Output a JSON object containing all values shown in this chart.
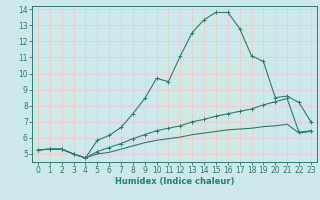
{
  "title": "",
  "xlabel": "Humidex (Indice chaleur)",
  "bg_color": "#cde8e8",
  "grid_color": "#f0c8c8",
  "line_color": "#2d7d6e",
  "xlim": [
    -0.5,
    23.5
  ],
  "ylim": [
    4.5,
    14.2
  ],
  "xticks": [
    0,
    1,
    2,
    3,
    4,
    5,
    6,
    7,
    8,
    9,
    10,
    11,
    12,
    13,
    14,
    15,
    16,
    17,
    18,
    19,
    20,
    21,
    22,
    23
  ],
  "yticks": [
    5,
    6,
    7,
    8,
    9,
    10,
    11,
    12,
    13,
    14
  ],
  "series1_x": [
    0,
    1,
    2,
    3,
    4,
    5,
    6,
    7,
    8,
    9,
    10,
    11,
    12,
    13,
    14,
    15,
    16,
    17,
    18,
    19,
    20,
    21,
    22,
    23
  ],
  "series1_y": [
    5.25,
    5.3,
    5.3,
    5.0,
    4.75,
    5.85,
    6.15,
    6.65,
    7.5,
    8.45,
    9.7,
    9.5,
    11.1,
    12.55,
    13.35,
    13.8,
    13.8,
    12.8,
    11.1,
    10.75,
    8.5,
    8.6,
    8.2,
    7.0
  ],
  "series2_x": [
    0,
    1,
    2,
    3,
    4,
    5,
    6,
    7,
    8,
    9,
    10,
    11,
    12,
    13,
    14,
    15,
    16,
    17,
    18,
    19,
    20,
    21,
    22,
    23
  ],
  "series2_y": [
    5.25,
    5.3,
    5.3,
    5.0,
    4.75,
    5.15,
    5.4,
    5.65,
    5.95,
    6.2,
    6.45,
    6.6,
    6.75,
    7.0,
    7.15,
    7.35,
    7.5,
    7.65,
    7.8,
    8.05,
    8.25,
    8.45,
    6.35,
    6.45
  ],
  "series3_x": [
    0,
    1,
    2,
    3,
    4,
    5,
    6,
    7,
    8,
    9,
    10,
    11,
    12,
    13,
    14,
    15,
    16,
    17,
    18,
    19,
    20,
    21,
    22,
    23
  ],
  "series3_y": [
    5.25,
    5.3,
    5.3,
    5.0,
    4.75,
    5.0,
    5.1,
    5.3,
    5.5,
    5.7,
    5.85,
    5.95,
    6.05,
    6.2,
    6.3,
    6.4,
    6.5,
    6.55,
    6.6,
    6.7,
    6.75,
    6.85,
    6.3,
    6.4
  ]
}
